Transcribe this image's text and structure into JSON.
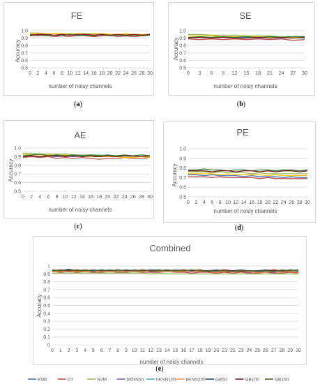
{
  "captions": [
    "a",
    "b",
    "c",
    "d",
    "e"
  ],
  "chart_data": [
    {
      "type": "line",
      "title": "FE",
      "xlabel": "number of noisy channels",
      "ylabel": "Accuracy",
      "ylim": [
        0.5,
        1.0
      ],
      "yticks": [
        "0.5",
        "0.6",
        "0.7",
        "0.8",
        "0.9",
        "1.0"
      ],
      "xticks": [
        "0",
        "2",
        "4",
        "6",
        "8",
        "10",
        "12",
        "14",
        "16",
        "18",
        "20",
        "22",
        "24",
        "26",
        "28",
        "30"
      ],
      "xrange": [
        0,
        30
      ],
      "grid": true,
      "series": [
        {
          "color": "#4472c4",
          "values": [
            0.95,
            0.94,
            0.95,
            0.94,
            0.95,
            0.94,
            0.95,
            0.94,
            0.95,
            0.94,
            0.95,
            0.94,
            0.95,
            0.94,
            0.95,
            0.95
          ]
        },
        {
          "color": "#c0504d",
          "values": [
            0.94,
            0.93,
            0.94,
            0.92,
            0.93,
            0.92,
            0.94,
            0.93,
            0.92,
            0.93,
            0.94,
            0.92,
            0.93,
            0.92,
            0.93,
            0.94
          ]
        },
        {
          "color": "#9bbb59",
          "values": [
            0.97,
            0.97,
            0.96,
            0.96,
            0.96,
            0.96,
            0.96,
            0.96,
            0.96,
            0.96,
            0.95,
            0.95,
            0.95,
            0.95,
            0.95,
            0.95
          ]
        },
        {
          "color": "#ffc000",
          "values": [
            0.96,
            0.96,
            0.96,
            0.96,
            0.96,
            0.95,
            0.96,
            0.95,
            0.95,
            0.96,
            0.95,
            0.95,
            0.96,
            0.95,
            0.95,
            0.95
          ]
        },
        {
          "color": "#2e7d32",
          "values": [
            0.93,
            0.95,
            0.93,
            0.94,
            0.93,
            0.95,
            0.93,
            0.94,
            0.93,
            0.95,
            0.93,
            0.94,
            0.93,
            0.94,
            0.93,
            0.94
          ]
        },
        {
          "color": "#7b1e1e",
          "values": [
            0.94,
            0.95,
            0.95,
            0.94,
            0.95,
            0.94,
            0.95,
            0.95,
            0.94,
            0.95,
            0.94,
            0.95,
            0.94,
            0.95,
            0.94,
            0.95
          ]
        }
      ]
    },
    {
      "type": "line",
      "title": "SE",
      "xlabel": "number of noisy channels",
      "ylabel": "Accuracy",
      "ylim": [
        0.5,
        1.0
      ],
      "yticks": [
        "0.5",
        "0.6",
        "0.7",
        "0.8",
        "0.9",
        "1.0"
      ],
      "xticks": [
        "0",
        "3",
        "6",
        "9",
        "12",
        "15",
        "18",
        "21",
        "24",
        "27",
        "30"
      ],
      "xrange": [
        0,
        30
      ],
      "grid": true,
      "series": [
        {
          "color": "#4472c4",
          "values": [
            0.91,
            0.91,
            0.9,
            0.91,
            0.9,
            0.91,
            0.9,
            0.91,
            0.9,
            0.91,
            0.9
          ]
        },
        {
          "color": "#c0504d",
          "values": [
            0.89,
            0.88,
            0.89,
            0.88,
            0.89,
            0.88,
            0.89,
            0.88,
            0.89,
            0.87,
            0.88
          ]
        },
        {
          "color": "#9bbb59",
          "values": [
            0.95,
            0.95,
            0.94,
            0.94,
            0.94,
            0.93,
            0.93,
            0.93,
            0.92,
            0.92,
            0.92
          ]
        },
        {
          "color": "#ffc000",
          "values": [
            0.93,
            0.93,
            0.93,
            0.92,
            0.92,
            0.92,
            0.92,
            0.91,
            0.91,
            0.91,
            0.91
          ]
        },
        {
          "color": "#2e7d32",
          "values": [
            0.91,
            0.92,
            0.91,
            0.92,
            0.91,
            0.92,
            0.91,
            0.92,
            0.91,
            0.92,
            0.92
          ]
        },
        {
          "color": "#7b1e1e",
          "values": [
            0.9,
            0.91,
            0.9,
            0.91,
            0.9,
            0.9,
            0.91,
            0.9,
            0.91,
            0.9,
            0.91
          ]
        }
      ]
    },
    {
      "type": "line",
      "title": "AE",
      "xlabel": "number of noisy channels",
      "ylabel": "Accuracy",
      "ylim": [
        0.5,
        1.0
      ],
      "yticks": [
        "0.5",
        "0.6",
        "0.7",
        "0.8",
        "0.9",
        "1.0"
      ],
      "xticks": [
        "0",
        "2",
        "4",
        "6",
        "8",
        "10",
        "12",
        "14",
        "16",
        "18",
        "20",
        "22",
        "24",
        "26",
        "28",
        "30"
      ],
      "xrange": [
        0,
        30
      ],
      "grid": true,
      "series": [
        {
          "color": "#4472c4",
          "values": [
            0.91,
            0.91,
            0.9,
            0.91,
            0.9,
            0.91,
            0.9,
            0.91,
            0.9,
            0.9,
            0.91,
            0.9,
            0.91,
            0.9,
            0.9,
            0.91
          ]
        },
        {
          "color": "#c0504d",
          "values": [
            0.89,
            0.9,
            0.89,
            0.9,
            0.88,
            0.89,
            0.88,
            0.89,
            0.88,
            0.87,
            0.88,
            0.88,
            0.89,
            0.88,
            0.88,
            0.89
          ]
        },
        {
          "color": "#9bbb59",
          "values": [
            0.94,
            0.94,
            0.93,
            0.93,
            0.93,
            0.93,
            0.92,
            0.92,
            0.92,
            0.92,
            0.91,
            0.91,
            0.91,
            0.9,
            0.9,
            0.9
          ]
        },
        {
          "color": "#ffc000",
          "values": [
            0.93,
            0.92,
            0.92,
            0.92,
            0.91,
            0.92,
            0.91,
            0.91,
            0.9,
            0.91,
            0.9,
            0.9,
            0.89,
            0.89,
            0.9,
            0.89
          ]
        },
        {
          "color": "#2e7d32",
          "values": [
            0.91,
            0.92,
            0.93,
            0.91,
            0.92,
            0.91,
            0.92,
            0.91,
            0.92,
            0.91,
            0.92,
            0.91,
            0.92,
            0.91,
            0.92,
            0.91
          ]
        },
        {
          "color": "#7b1e1e",
          "values": [
            0.9,
            0.91,
            0.9,
            0.91,
            0.91,
            0.9,
            0.91,
            0.9,
            0.91,
            0.9,
            0.91,
            0.9,
            0.91,
            0.91,
            0.9,
            0.91
          ]
        }
      ]
    },
    {
      "type": "line",
      "title": "PE",
      "xlabel": "number of noisy channels",
      "ylabel": "Accuracy",
      "ylim": [
        0.5,
        1.0
      ],
      "yticks": [
        "0.5",
        "0.6",
        "0.7",
        "0.8",
        "0.9",
        "1.0"
      ],
      "xticks": [
        "0",
        "2",
        "4",
        "6",
        "8",
        "10",
        "12",
        "14",
        "16",
        "18",
        "20",
        "22",
        "24",
        "26",
        "28",
        "30"
      ],
      "xrange": [
        0,
        30
      ],
      "grid": true,
      "series": [
        {
          "color": "#4472c4",
          "values": [
            0.73,
            0.73,
            0.72,
            0.73,
            0.72,
            0.72,
            0.72,
            0.71,
            0.72,
            0.71,
            0.71,
            0.71,
            0.7,
            0.71,
            0.7,
            0.7
          ]
        },
        {
          "color": "#c0504d",
          "values": [
            0.71,
            0.71,
            0.71,
            0.7,
            0.71,
            0.7,
            0.7,
            0.7,
            0.7,
            0.69,
            0.7,
            0.69,
            0.69,
            0.69,
            0.69,
            0.69
          ]
        },
        {
          "color": "#9bbb59",
          "values": [
            0.76,
            0.76,
            0.76,
            0.75,
            0.76,
            0.75,
            0.75,
            0.75,
            0.74,
            0.75,
            0.74,
            0.74,
            0.74,
            0.74,
            0.74,
            0.74
          ]
        },
        {
          "color": "#ffc000",
          "values": [
            0.74,
            0.74,
            0.74,
            0.74,
            0.73,
            0.74,
            0.73,
            0.73,
            0.73,
            0.73,
            0.72,
            0.73,
            0.72,
            0.72,
            0.72,
            0.72
          ]
        },
        {
          "color": "#2e7d32",
          "values": [
            0.78,
            0.78,
            0.79,
            0.78,
            0.78,
            0.77,
            0.78,
            0.78,
            0.77,
            0.78,
            0.78,
            0.77,
            0.78,
            0.78,
            0.77,
            0.78
          ]
        },
        {
          "color": "#7b1e1e",
          "values": [
            0.77,
            0.77,
            0.77,
            0.76,
            0.77,
            0.77,
            0.76,
            0.77,
            0.77,
            0.76,
            0.77,
            0.76,
            0.77,
            0.77,
            0.76,
            0.77
          ]
        }
      ]
    },
    {
      "type": "line",
      "title": "Combined",
      "xlabel": "number of noisy channels",
      "ylabel": "Accuracy",
      "ylim": [
        0,
        1
      ],
      "yticks": [
        "0",
        "0.1",
        "0.2",
        "0.3",
        "0.4",
        "0.5",
        "0.6",
        "0.7",
        "0.8",
        "0.9",
        "1"
      ],
      "xticks": [
        "0",
        "1",
        "2",
        "3",
        "4",
        "5",
        "6",
        "7",
        "8",
        "9",
        "10",
        "11",
        "12",
        "13",
        "14",
        "15",
        "16",
        "17",
        "18",
        "19",
        "20",
        "21",
        "22",
        "23",
        "24",
        "25",
        "26",
        "27",
        "28",
        "29",
        "30"
      ],
      "xrange": [
        0,
        30
      ],
      "grid": true,
      "legend": "bottom",
      "series": [
        {
          "name": "KNN",
          "color": "#4472c4",
          "values": [
            0.94,
            0.94,
            0.94,
            0.93,
            0.94,
            0.93,
            0.94,
            0.93,
            0.94,
            0.93,
            0.93,
            0.94,
            0.93,
            0.93,
            0.94,
            0.93,
            0.93,
            0.93,
            0.93,
            0.92,
            0.93,
            0.92,
            0.93,
            0.92,
            0.92,
            0.93,
            0.92,
            0.92,
            0.93,
            0.92,
            0.92
          ]
        },
        {
          "name": "DT",
          "color": "#c0504d",
          "values": [
            0.93,
            0.92,
            0.93,
            0.92,
            0.93,
            0.92,
            0.92,
            0.93,
            0.92,
            0.92,
            0.93,
            0.92,
            0.92,
            0.92,
            0.93,
            0.92,
            0.92,
            0.91,
            0.92,
            0.92,
            0.91,
            0.92,
            0.91,
            0.92,
            0.91,
            0.91,
            0.92,
            0.91,
            0.91,
            0.92,
            0.91
          ]
        },
        {
          "name": "SVM",
          "color": "#9bbb59",
          "values": [
            0.91,
            0.91,
            0.91,
            0.91,
            0.91,
            0.91,
            0.91,
            0.91,
            0.91,
            0.91,
            0.91,
            0.91,
            0.9,
            0.91,
            0.9,
            0.9,
            0.9,
            0.9,
            0.9,
            0.9,
            0.9,
            0.9,
            0.9,
            0.9,
            0.9,
            0.9,
            0.9,
            0.9,
            0.9,
            0.9,
            0.9
          ]
        },
        {
          "name": "bKNN50",
          "color": "#8064a2",
          "values": [
            0.95,
            0.94,
            0.95,
            0.94,
            0.95,
            0.94,
            0.95,
            0.94,
            0.95,
            0.94,
            0.94,
            0.95,
            0.94,
            0.94,
            0.95,
            0.94,
            0.94,
            0.94,
            0.93,
            0.94,
            0.94,
            0.93,
            0.94,
            0.93,
            0.93,
            0.94,
            0.93,
            0.93,
            0.94,
            0.94,
            0.93
          ]
        },
        {
          "name": "bKNN100",
          "color": "#4bacc6",
          "values": [
            0.94,
            0.95,
            0.94,
            0.95,
            0.94,
            0.94,
            0.95,
            0.94,
            0.94,
            0.95,
            0.94,
            0.94,
            0.95,
            0.94,
            0.94,
            0.94,
            0.95,
            0.94,
            0.94,
            0.93,
            0.94,
            0.94,
            0.93,
            0.94,
            0.93,
            0.94,
            0.93,
            0.94,
            0.94,
            0.93,
            0.94
          ]
        },
        {
          "name": "bKNN200",
          "color": "#f79646",
          "values": [
            0.93,
            0.93,
            0.94,
            0.93,
            0.93,
            0.94,
            0.93,
            0.93,
            0.94,
            0.93,
            0.93,
            0.93,
            0.94,
            0.93,
            0.93,
            0.93,
            0.93,
            0.94,
            0.93,
            0.93,
            0.92,
            0.93,
            0.93,
            0.92,
            0.93,
            0.92,
            0.92,
            0.93,
            0.92,
            0.93,
            0.92
          ]
        },
        {
          "name": "GB50",
          "color": "#2c4d75",
          "values": [
            0.95,
            0.94,
            0.96,
            0.94,
            0.95,
            0.94,
            0.95,
            0.94,
            0.95,
            0.94,
            0.95,
            0.94,
            0.95,
            0.95,
            0.94,
            0.95,
            0.94,
            0.95,
            0.94,
            0.94,
            0.95,
            0.94,
            0.94,
            0.95,
            0.94,
            0.94,
            0.95,
            0.94,
            0.94,
            0.95,
            0.94
          ]
        },
        {
          "name": "GB100",
          "color": "#7b1e1e",
          "values": [
            0.94,
            0.95,
            0.94,
            0.95,
            0.94,
            0.95,
            0.94,
            0.95,
            0.94,
            0.95,
            0.94,
            0.95,
            0.94,
            0.94,
            0.95,
            0.94,
            0.95,
            0.94,
            0.95,
            0.93,
            0.94,
            0.95,
            0.94,
            0.93,
            0.94,
            0.93,
            0.94,
            0.95,
            0.94,
            0.94,
            0.95
          ]
        },
        {
          "name": "GB200",
          "color": "#4f6228",
          "values": [
            0.95,
            0.94,
            0.95,
            0.94,
            0.94,
            0.95,
            0.94,
            0.95,
            0.94,
            0.95,
            0.94,
            0.94,
            0.95,
            0.94,
            0.95,
            0.94,
            0.94,
            0.95,
            0.94,
            0.93,
            0.94,
            0.94,
            0.93,
            0.94,
            0.94,
            0.93,
            0.94,
            0.93,
            0.95,
            0.94,
            0.95
          ]
        }
      ]
    }
  ]
}
